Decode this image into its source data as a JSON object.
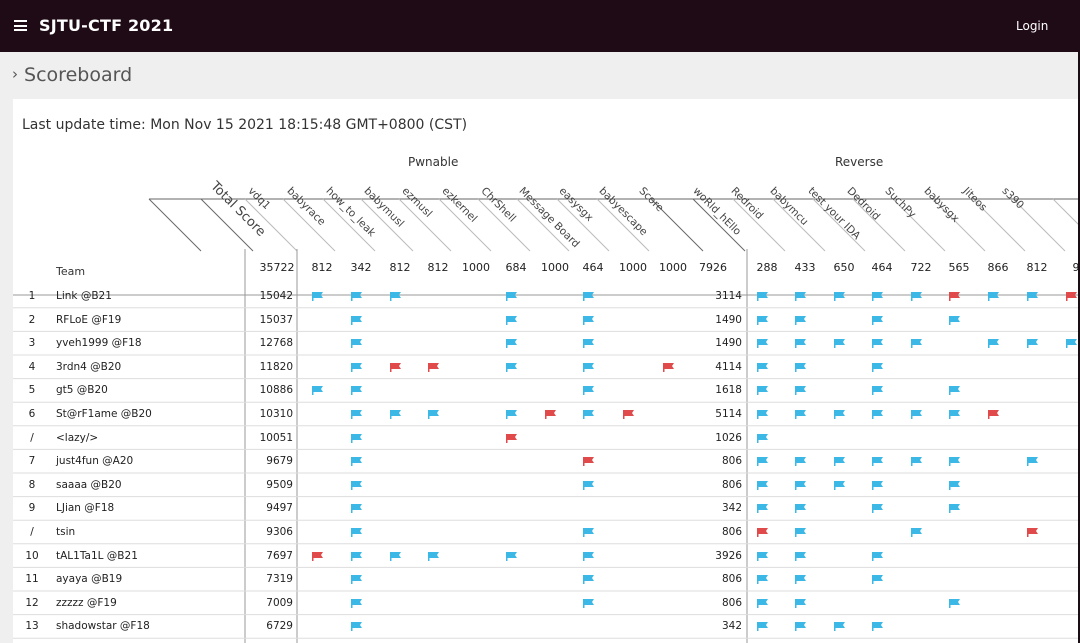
{
  "topbar": {
    "brand": "SJTU-CTF 2021",
    "login": "Login"
  },
  "breadcrumb": "Scoreboard",
  "update_time": "Last update time: Mon Nov 15 2021 18:15:48 GMT+0800 (CST)",
  "colors": {
    "topbar": "#1f0b15",
    "flag_solved": "#3cb8e6",
    "flag_first_blood": "#e04a4a"
  },
  "categories": [
    {
      "name": "Pwnable"
    },
    {
      "name": "Reverse"
    }
  ],
  "team_header": "Team",
  "total_label": "Total Score",
  "total_sum": "35722",
  "columns": [
    {
      "label": "vdq1",
      "points": "812"
    },
    {
      "label": "babyrace",
      "points": "342"
    },
    {
      "label": "how_to_leak",
      "points": "812"
    },
    {
      "label": "babymusl",
      "points": "812"
    },
    {
      "label": "ezmusl",
      "points": "1000"
    },
    {
      "label": "ezkernel",
      "points": "684"
    },
    {
      "label": "ChrShell",
      "points": "1000"
    },
    {
      "label": "Message Board",
      "points": "464"
    },
    {
      "label": "easysgx",
      "points": "1000"
    },
    {
      "label": "babyescape",
      "points": "1000"
    },
    {
      "label": "Score",
      "points": "7926"
    },
    {
      "label": "woRld_hEllo",
      "points": "288"
    },
    {
      "label": "Redroid",
      "points": "433"
    },
    {
      "label": "babymcu",
      "points": "650"
    },
    {
      "label": "test your IDA",
      "points": "464"
    },
    {
      "label": "Dedroid",
      "points": "722"
    },
    {
      "label": "SuchPy",
      "points": "565"
    },
    {
      "label": "babysgx",
      "points": "866"
    },
    {
      "label": "Jiteos",
      "points": "812"
    },
    {
      "label": "s390",
      "points": "9"
    }
  ],
  "rows": [
    {
      "rank": "1",
      "team": "Link @B21",
      "total": "15042",
      "cat_score": "3114",
      "pwn": [
        "b",
        "b",
        "b",
        "",
        "",
        "b",
        "",
        "b",
        "",
        ""
      ],
      "rev": [
        "b",
        "b",
        "b",
        "b",
        "b",
        "r",
        "b",
        "b",
        "r"
      ]
    },
    {
      "rank": "2",
      "team": "RFLoE @F19",
      "total": "15037",
      "cat_score": "1490",
      "pwn": [
        "",
        "b",
        "",
        "",
        "",
        "b",
        "",
        "b",
        "",
        ""
      ],
      "rev": [
        "b",
        "b",
        "",
        "b",
        "",
        "b",
        "",
        "",
        ""
      ]
    },
    {
      "rank": "3",
      "team": "yveh1999 @F18",
      "total": "12768",
      "cat_score": "1490",
      "pwn": [
        "",
        "b",
        "",
        "",
        "",
        "b",
        "",
        "b",
        "",
        ""
      ],
      "rev": [
        "b",
        "b",
        "b",
        "b",
        "b",
        "",
        "b",
        "b",
        "b"
      ]
    },
    {
      "rank": "4",
      "team": "3rdn4 @B20",
      "total": "11820",
      "cat_score": "4114",
      "pwn": [
        "",
        "b",
        "r",
        "r",
        "",
        "b",
        "",
        "b",
        "",
        "r"
      ],
      "rev": [
        "b",
        "b",
        "",
        "b",
        "",
        "",
        "",
        "",
        ""
      ]
    },
    {
      "rank": "5",
      "team": "gt5 @B20",
      "total": "10886",
      "cat_score": "1618",
      "pwn": [
        "b",
        "b",
        "",
        "",
        "",
        "",
        "",
        "b",
        "",
        ""
      ],
      "rev": [
        "b",
        "b",
        "",
        "b",
        "",
        "b",
        "",
        "",
        ""
      ]
    },
    {
      "rank": "6",
      "team": "St@rF1ame @B20",
      "total": "10310",
      "cat_score": "5114",
      "pwn": [
        "",
        "b",
        "b",
        "b",
        "",
        "b",
        "r",
        "b",
        "r",
        ""
      ],
      "rev": [
        "b",
        "b",
        "b",
        "b",
        "b",
        "b",
        "r",
        "",
        ""
      ]
    },
    {
      "rank": "/",
      "team": "<lazy/>",
      "total": "10051",
      "cat_score": "1026",
      "pwn": [
        "",
        "b",
        "",
        "",
        "",
        "r",
        "",
        "",
        "",
        ""
      ],
      "rev": [
        "b",
        "",
        "",
        "",
        "",
        "",
        "",
        "",
        ""
      ]
    },
    {
      "rank": "7",
      "team": "just4fun @A20",
      "total": "9679",
      "cat_score": "806",
      "pwn": [
        "",
        "b",
        "",
        "",
        "",
        "",
        "",
        "r",
        "",
        ""
      ],
      "rev": [
        "b",
        "b",
        "b",
        "b",
        "b",
        "b",
        "",
        "b",
        ""
      ]
    },
    {
      "rank": "8",
      "team": "saaaa @B20",
      "total": "9509",
      "cat_score": "806",
      "pwn": [
        "",
        "b",
        "",
        "",
        "",
        "",
        "",
        "b",
        "",
        ""
      ],
      "rev": [
        "b",
        "b",
        "b",
        "b",
        "",
        "b",
        "",
        "",
        ""
      ]
    },
    {
      "rank": "9",
      "team": "LJian @F18",
      "total": "9497",
      "cat_score": "342",
      "pwn": [
        "",
        "b",
        "",
        "",
        "",
        "",
        "",
        "",
        "",
        ""
      ],
      "rev": [
        "b",
        "b",
        "",
        "b",
        "",
        "b",
        "",
        "",
        ""
      ]
    },
    {
      "rank": "/",
      "team": "tsin",
      "total": "9306",
      "cat_score": "806",
      "pwn": [
        "",
        "b",
        "",
        "",
        "",
        "",
        "",
        "b",
        "",
        ""
      ],
      "rev": [
        "r",
        "b",
        "",
        "",
        "b",
        "",
        "",
        "r",
        ""
      ]
    },
    {
      "rank": "10",
      "team": "tAL1Ta1L @B21",
      "total": "7697",
      "cat_score": "3926",
      "pwn": [
        "r",
        "b",
        "b",
        "b",
        "",
        "b",
        "",
        "b",
        "",
        ""
      ],
      "rev": [
        "b",
        "b",
        "",
        "b",
        "",
        "",
        "",
        "",
        ""
      ]
    },
    {
      "rank": "11",
      "team": "ayaya @B19",
      "total": "7319",
      "cat_score": "806",
      "pwn": [
        "",
        "b",
        "",
        "",
        "",
        "",
        "",
        "b",
        "",
        ""
      ],
      "rev": [
        "b",
        "b",
        "",
        "b",
        "",
        "",
        "",
        "",
        ""
      ]
    },
    {
      "rank": "12",
      "team": "zzzzz @F19",
      "total": "7009",
      "cat_score": "806",
      "pwn": [
        "",
        "b",
        "",
        "",
        "",
        "",
        "",
        "b",
        "",
        ""
      ],
      "rev": [
        "b",
        "b",
        "",
        "",
        "",
        "b",
        "",
        "",
        ""
      ]
    },
    {
      "rank": "13",
      "team": "shadowstar @F18",
      "total": "6729",
      "cat_score": "342",
      "pwn": [
        "",
        "b",
        "",
        "",
        "",
        "",
        "",
        "",
        "",
        ""
      ],
      "rev": [
        "b",
        "b",
        "b",
        "b",
        "",
        "",
        "",
        "",
        ""
      ]
    }
  ]
}
